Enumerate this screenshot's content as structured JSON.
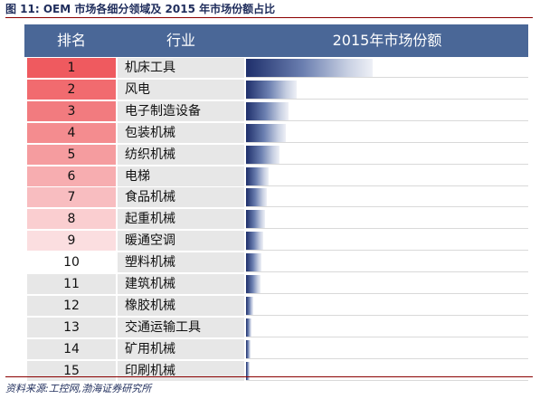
{
  "figure_title": "图 11:  OEM 市场各细分领域及 2015 年市场份额占比",
  "source_note": "资料来源:工控网,渤海证券研究所",
  "colors": {
    "header_bg": "#4a6797",
    "bar_dark": "#1e2f6b",
    "rank_red_dark": "#ef5a5f",
    "rank_red_light": "#fdeff0"
  },
  "chart_data": {
    "type": "table",
    "title": "",
    "columns": [
      "排名",
      "行业",
      "2015年市场份额"
    ],
    "value_unit": "",
    "value_range": [
      0,
      1
    ],
    "rows": [
      {
        "rank": "1",
        "industry": "机床工具",
        "share": 0.45
      },
      {
        "rank": "2",
        "industry": "风电",
        "share": 0.18
      },
      {
        "rank": "3",
        "industry": "电子制造设备",
        "share": 0.15
      },
      {
        "rank": "4",
        "industry": "包装机械",
        "share": 0.14
      },
      {
        "rank": "5",
        "industry": "纺织机械",
        "share": 0.12
      },
      {
        "rank": "6",
        "industry": "电梯",
        "share": 0.08
      },
      {
        "rank": "7",
        "industry": "食品机械",
        "share": 0.075
      },
      {
        "rank": "8",
        "industry": "起重机械",
        "share": 0.068
      },
      {
        "rank": "9",
        "industry": "暖通空调",
        "share": 0.06
      },
      {
        "rank": "10",
        "industry": "塑料机械",
        "share": 0.055
      },
      {
        "rank": "11",
        "industry": "建筑机械",
        "share": 0.052
      },
      {
        "rank": "12",
        "industry": "橡胶机械",
        "share": 0.025
      },
      {
        "rank": "13",
        "industry": "交通运输工具",
        "share": 0.02
      },
      {
        "rank": "14",
        "industry": "矿用机械",
        "share": 0.015
      },
      {
        "rank": "15",
        "industry": "印刷机械",
        "share": 0.012
      }
    ]
  }
}
